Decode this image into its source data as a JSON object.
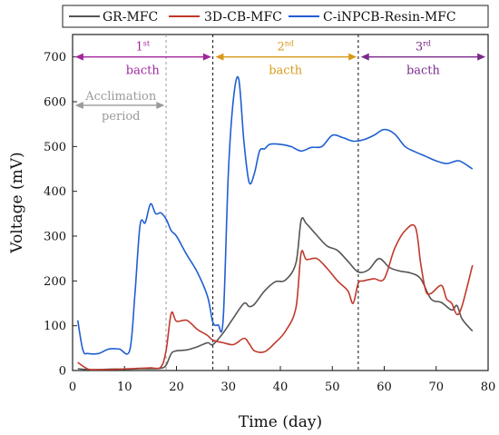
{
  "chart_data": {
    "type": "line",
    "title": "",
    "xlabel": "Time (day)",
    "ylabel": "Voltage (mV)",
    "xlim": [
      0,
      80
    ],
    "ylim": [
      0,
      750
    ],
    "x_ticks": [
      0,
      10,
      20,
      30,
      40,
      50,
      60,
      70,
      80
    ],
    "y_ticks": [
      0,
      100,
      200,
      300,
      400,
      500,
      600,
      700
    ],
    "grid": false,
    "legend_placement": "top",
    "series": [
      {
        "name": "GR-MFC",
        "color": "#555555",
        "x": [
          1,
          3,
          5,
          7,
          9,
          11,
          13,
          15,
          17,
          18,
          19,
          20,
          22,
          24,
          26,
          27,
          29,
          31,
          33,
          34,
          35,
          37,
          39,
          41,
          43,
          44,
          45,
          47,
          49,
          51,
          53,
          55,
          57,
          59,
          61,
          63,
          65,
          67,
          69,
          71,
          73,
          74,
          75,
          77
        ],
        "values": [
          4,
          2,
          2,
          3,
          3,
          3,
          4,
          4,
          5,
          12,
          38,
          44,
          46,
          53,
          62,
          58,
          84,
          118,
          150,
          143,
          148,
          178,
          198,
          202,
          240,
          335,
          328,
          302,
          278,
          268,
          244,
          220,
          225,
          250,
          230,
          222,
          218,
          205,
          160,
          152,
          135,
          145,
          115,
          88
        ]
      },
      {
        "name": "3D-CB-MFC",
        "color": "#c0392b",
        "x": [
          1,
          3,
          5,
          7,
          9,
          11,
          13,
          15,
          17,
          18,
          19,
          20,
          22,
          24,
          26,
          27,
          29,
          31,
          33,
          34,
          35,
          37,
          39,
          41,
          43,
          44,
          45,
          47,
          49,
          51,
          53,
          54,
          55,
          56,
          58,
          60,
          62,
          64,
          66,
          67,
          68,
          69,
          71,
          72,
          73,
          74,
          75,
          77
        ],
        "values": [
          18,
          3,
          2,
          2,
          3,
          4,
          5,
          6,
          8,
          45,
          128,
          110,
          112,
          92,
          78,
          68,
          62,
          58,
          72,
          60,
          44,
          42,
          62,
          88,
          140,
          262,
          248,
          250,
          228,
          200,
          178,
          150,
          195,
          200,
          205,
          205,
          272,
          312,
          320,
          240,
          178,
          172,
          190,
          160,
          150,
          125,
          145,
          235
        ]
      },
      {
        "name": "C-iNPCB-Resin-MFC",
        "color": "#1f5fd1",
        "x": [
          1,
          2,
          3,
          5,
          7,
          9,
          11,
          12,
          13,
          14,
          15,
          16,
          17,
          18,
          19,
          20,
          22,
          24,
          26,
          27,
          28,
          29,
          30,
          31,
          32,
          33,
          34,
          35,
          36,
          37,
          38,
          40,
          42,
          44,
          46,
          48,
          50,
          52,
          54,
          56,
          58,
          60,
          62,
          64,
          66,
          68,
          70,
          72,
          74,
          75,
          77
        ],
        "values": [
          112,
          45,
          38,
          38,
          48,
          48,
          45,
          170,
          325,
          330,
          372,
          350,
          352,
          338,
          312,
          300,
          258,
          220,
          165,
          108,
          102,
          115,
          445,
          610,
          650,
          510,
          420,
          440,
          490,
          495,
          505,
          505,
          500,
          490,
          498,
          500,
          525,
          520,
          512,
          515,
          525,
          538,
          528,
          500,
          488,
          478,
          468,
          462,
          468,
          465,
          450
        ]
      }
    ],
    "annotations": {
      "batch1_label_sup": "st",
      "batch1_label_num": "1",
      "batch1_word": "bacth",
      "batch2_label_num": "2",
      "batch2_label_sup": "nd",
      "batch2_word": "bacth",
      "batch3_label_num": "3",
      "batch3_label_sup": "rd",
      "batch3_word": "bacth",
      "acclimation_line1": "Acclimation",
      "acclimation_line2": "period",
      "color_batch1": "#a0269b",
      "color_batch2": "#d89a1a",
      "color_batch3": "#7a2a8a",
      "color_acclimation": "#9a9a9a",
      "batch_bounds": [
        18,
        27,
        55
      ]
    }
  }
}
